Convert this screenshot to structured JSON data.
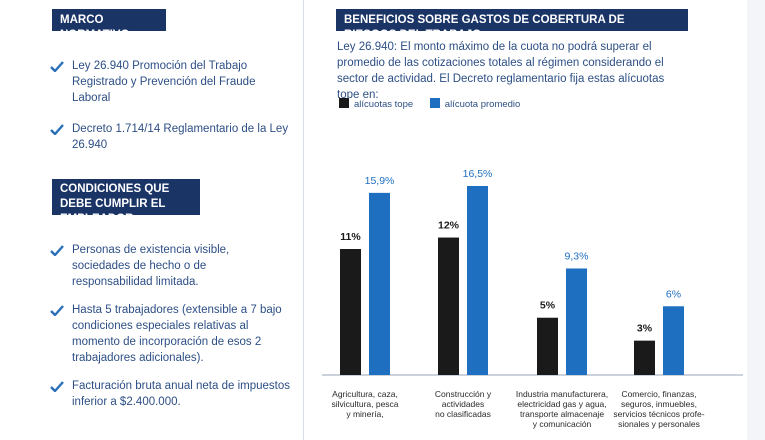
{
  "left": {
    "marco": {
      "title": "MARCO NORMATIVO",
      "items": [
        "Ley 26.940 Promoción del Trabajo Registrado y Prevención del Fraude Laboral",
        "Decreto 1.714/14 Reglamentario de la Ley 26.940"
      ]
    },
    "condiciones": {
      "title": "CONDICIONES QUE DEBE CUMPLIR EL EMPLEADOR",
      "items": [
        "Personas de existencia visible, sociedades de hecho o de responsabilidad limitada.",
        "Hasta 5 trabajadores (extensible a 7 bajo condiciones especiales relativas al momento de incorporación de esos 2 trabajadores adicionales).",
        "Facturación bruta anual neta de impuestos inferior a $2.400.000."
      ]
    }
  },
  "right": {
    "title": "BENEFICIOS SOBRE GASTOS DE COBERTURA DE RIESGOS DEL TRABAJO",
    "intro": "Ley 26.940: El monto máximo de la cuota no podrá superar el promedio de las cotizaciones totales al régimen considerando el sector de actividad. El Decreto reglamentario fija estas alícuotas tope en:"
  },
  "colors": {
    "navy": "#1b3466",
    "tope": "#1a1a1a",
    "promedio": "#1f6fc1",
    "check": "#2a6fb8"
  },
  "chart_data": {
    "type": "bar",
    "categories": [
      "Agricultura, caza, silvicultura, pesca y minería,",
      "Construcción y actividades no clasificadas",
      "Industria manufacturera, electricidad gas y agua, transporte almacenaje y comunicación",
      "Comercio, finanzas, seguros, inmuebles, servicios técnicos profesionales y personales"
    ],
    "category_lines": [
      [
        "Agricultura, caza,",
        "silvicultura, pesca",
        "y minería,"
      ],
      [
        "Construcción y",
        "actividades",
        "no clasificadas"
      ],
      [
        "Industria manufacturera,",
        "electricidad gas y agua,",
        "transporte almacenaje",
        "y comunicación"
      ],
      [
        "Comercio, finanzas,",
        "seguros, inmuebles,",
        "servicios técnicos profe-",
        "sionales y personales"
      ]
    ],
    "series": [
      {
        "name": "alícuotas tope",
        "values": [
          11,
          12,
          5,
          3
        ],
        "labels": [
          "11%",
          "12%",
          "5%",
          "3%"
        ]
      },
      {
        "name": "alícuota promedio",
        "values": [
          15.9,
          16.5,
          9.3,
          6
        ],
        "labels": [
          "15,9%",
          "16,5%",
          "9,3%",
          "6%"
        ]
      }
    ],
    "ylim": [
      0,
      16.5
    ],
    "legend": "top-left"
  }
}
